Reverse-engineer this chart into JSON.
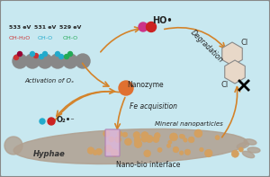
{
  "bg_color": "#c8e8f0",
  "border_color": "#888888",
  "title": "",
  "arrow_color": "#d4832a",
  "text_color": "#222222",
  "ev_labels": [
    "533 eV",
    "531 eV",
    "529 eV"
  ],
  "oh_labels": [
    "OH-H₂O",
    "OH-O",
    "OH-O"
  ],
  "oh_colors": [
    "#cc4444",
    "#22aacc",
    "#22aa55"
  ],
  "nanozyme_text": "Nanozyme",
  "fe_text": "Fe acquisition",
  "activation_text": "Activation of Oₓ",
  "degradation_text": "Degradation",
  "mineral_text": "Mineral nanoparticles",
  "hyphae_text": "Hyphae",
  "nano_bio_text": "Nano-bio interface",
  "ho_text": "HO•",
  "o2_text": "O₂•⁻",
  "hyphae_color": "#b0a090",
  "nanoparticle_color": "#d4a060",
  "nanoparticle_outline": "#aa7030",
  "rectangle_color": "#d8b0d0",
  "biphenyl_color": "#ccbbaa",
  "biphenyl_outline": "#888888",
  "cl_color": "#333333"
}
